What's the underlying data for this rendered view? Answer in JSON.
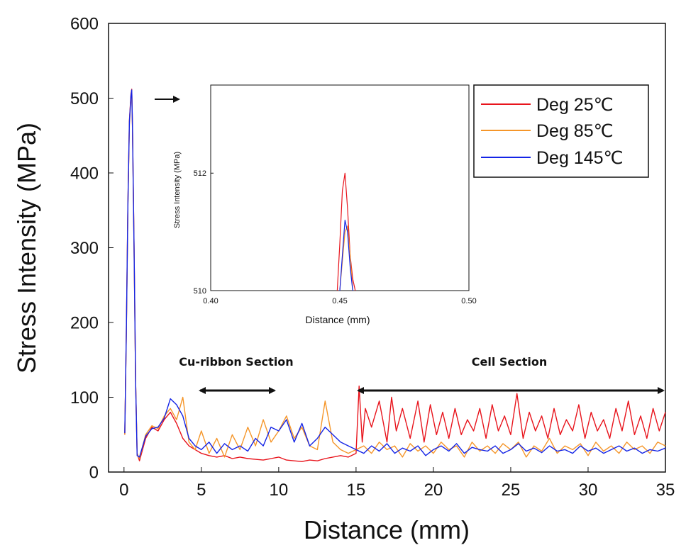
{
  "chart_data": [
    {
      "id": "main",
      "type": "line",
      "xlabel": "Distance (mm)",
      "ylabel": "Stress Intensity (MPa)",
      "xlim": [
        -1,
        35
      ],
      "ylim": [
        0,
        600
      ],
      "xticks": [
        0,
        5,
        10,
        15,
        20,
        25,
        30,
        35
      ],
      "yticks": [
        0,
        100,
        200,
        300,
        400,
        500,
        600
      ],
      "grid": false,
      "legend_position": "top-right",
      "series": [
        {
          "name": "Deg 25℃",
          "color": "#e8141c",
          "x": [
            0.05,
            0.15,
            0.25,
            0.35,
            0.45,
            0.5,
            0.55,
            0.65,
            0.75,
            0.85,
            1.0,
            1.4,
            1.8,
            2.2,
            2.6,
            3.0,
            3.4,
            3.8,
            4.2,
            4.6,
            5.0,
            5.5,
            6.0,
            6.5,
            7.0,
            7.5,
            8.0,
            8.5,
            9.0,
            9.5,
            10.0,
            10.5,
            11.0,
            11.5,
            12.0,
            12.5,
            13.0,
            13.5,
            14.0,
            14.5,
            15.0,
            15.2,
            15.4,
            15.6,
            16.0,
            16.5,
            17.0,
            17.3,
            17.6,
            18.0,
            18.5,
            19.0,
            19.4,
            19.8,
            20.2,
            20.6,
            21.0,
            21.4,
            21.8,
            22.2,
            22.6,
            23.0,
            23.4,
            23.8,
            24.2,
            24.6,
            25.0,
            25.4,
            25.8,
            26.2,
            26.6,
            27.0,
            27.4,
            27.8,
            28.2,
            28.6,
            29.0,
            29.4,
            29.8,
            30.2,
            30.6,
            31.0,
            31.4,
            31.8,
            32.2,
            32.6,
            33.0,
            33.4,
            33.8,
            34.2,
            34.6,
            35.0
          ],
          "y": [
            50,
            190,
            360,
            470,
            505,
            512,
            460,
            300,
            120,
            25,
            15,
            45,
            60,
            55,
            70,
            80,
            65,
            45,
            35,
            30,
            25,
            22,
            20,
            22,
            18,
            20,
            18,
            17,
            16,
            18,
            20,
            16,
            15,
            14,
            16,
            15,
            18,
            20,
            22,
            20,
            25,
            115,
            40,
            85,
            60,
            95,
            40,
            100,
            55,
            85,
            45,
            95,
            40,
            90,
            50,
            80,
            45,
            85,
            50,
            70,
            55,
            85,
            45,
            90,
            55,
            75,
            50,
            105,
            45,
            80,
            55,
            75,
            45,
            85,
            50,
            70,
            55,
            90,
            45,
            80,
            55,
            70,
            45,
            85,
            55,
            95,
            50,
            75,
            45,
            85,
            55,
            80
          ]
        },
        {
          "name": "Deg 85℃",
          "color": "#f5962a",
          "x": [
            0.05,
            0.15,
            0.25,
            0.35,
            0.45,
            0.5,
            0.55,
            0.65,
            0.75,
            0.85,
            1.0,
            1.4,
            1.8,
            2.2,
            2.6,
            3.0,
            3.4,
            3.8,
            4.2,
            4.6,
            5.0,
            5.5,
            6.0,
            6.5,
            7.0,
            7.5,
            8.0,
            8.5,
            9.0,
            9.5,
            10.0,
            10.5,
            11.0,
            11.5,
            12.0,
            12.5,
            13.0,
            13.5,
            14.0,
            14.5,
            15.0,
            15.5,
            16.0,
            16.5,
            17.0,
            17.5,
            18.0,
            18.5,
            19.0,
            19.5,
            20.0,
            20.5,
            21.0,
            21.5,
            22.0,
            22.5,
            23.0,
            23.5,
            24.0,
            24.5,
            25.0,
            25.5,
            26.0,
            26.5,
            27.0,
            27.5,
            28.0,
            28.5,
            29.0,
            29.5,
            30.0,
            30.5,
            31.0,
            31.5,
            32.0,
            32.5,
            33.0,
            33.5,
            34.0,
            34.5,
            35.0
          ],
          "y": [
            50,
            185,
            355,
            465,
            500,
            511,
            455,
            295,
            118,
            25,
            18,
            50,
            62,
            58,
            75,
            85,
            70,
            100,
            40,
            30,
            55,
            25,
            45,
            20,
            50,
            30,
            60,
            35,
            70,
            40,
            55,
            75,
            45,
            60,
            35,
            30,
            95,
            40,
            30,
            25,
            30,
            35,
            25,
            40,
            30,
            35,
            20,
            38,
            28,
            35,
            25,
            40,
            30,
            35,
            20,
            40,
            28,
            35,
            25,
            38,
            30,
            40,
            20,
            35,
            28,
            45,
            25,
            35,
            30,
            38,
            22,
            40,
            28,
            35,
            25,
            40,
            30,
            35,
            25,
            40,
            35
          ]
        },
        {
          "name": "Deg 145℃",
          "color": "#1424e6",
          "x": [
            0.05,
            0.15,
            0.25,
            0.35,
            0.45,
            0.5,
            0.55,
            0.65,
            0.75,
            0.85,
            1.0,
            1.4,
            1.8,
            2.2,
            2.6,
            3.0,
            3.4,
            3.8,
            4.2,
            4.6,
            5.0,
            5.5,
            6.0,
            6.5,
            7.0,
            7.5,
            8.0,
            8.5,
            9.0,
            9.5,
            10.0,
            10.5,
            11.0,
            11.5,
            12.0,
            12.5,
            13.0,
            13.5,
            14.0,
            14.5,
            15.0,
            15.5,
            16.0,
            16.5,
            17.0,
            17.5,
            18.0,
            18.5,
            19.0,
            19.5,
            20.0,
            20.5,
            21.0,
            21.5,
            22.0,
            22.5,
            23.0,
            23.5,
            24.0,
            24.5,
            25.0,
            25.5,
            26.0,
            26.5,
            27.0,
            27.5,
            28.0,
            28.5,
            29.0,
            29.5,
            30.0,
            30.5,
            31.0,
            31.5,
            32.0,
            32.5,
            33.0,
            33.5,
            34.0,
            34.5,
            35.0
          ],
          "y": [
            52,
            188,
            358,
            468,
            503,
            511,
            458,
            298,
            119,
            22,
            20,
            48,
            58,
            60,
            72,
            98,
            90,
            75,
            45,
            35,
            30,
            40,
            25,
            38,
            30,
            35,
            28,
            45,
            35,
            60,
            55,
            70,
            40,
            65,
            35,
            45,
            60,
            50,
            40,
            35,
            30,
            25,
            35,
            28,
            38,
            25,
            32,
            28,
            35,
            22,
            30,
            35,
            28,
            38,
            25,
            33,
            30,
            28,
            35,
            25,
            30,
            38,
            28,
            32,
            26,
            35,
            28,
            30,
            25,
            35,
            28,
            32,
            25,
            30,
            35,
            28,
            32,
            25,
            30,
            28,
            32
          ]
        }
      ],
      "annotations": [
        {
          "text": "Cu-ribbon Section",
          "x_start": 5,
          "x_end": 10
        },
        {
          "text": "Cell Section",
          "x_start": 15,
          "x_end": 35
        }
      ]
    },
    {
      "id": "inset",
      "type": "line",
      "xlabel": "Distance (mm)",
      "ylabel": "Stress Intensity (MPa)",
      "xlim": [
        0.4,
        0.5
      ],
      "ylim": [
        510,
        513.5
      ],
      "xticks": [
        0.4,
        0.45,
        0.5
      ],
      "xtick_labels": [
        "0.40",
        "0.45",
        "0.50"
      ],
      "yticks": [
        510,
        512
      ],
      "series": [
        {
          "name": "Deg 25℃",
          "color": "#e8141c",
          "x": [
            0.449,
            0.45,
            0.451,
            0.452,
            0.453,
            0.454,
            0.455,
            0.456
          ],
          "y": [
            510,
            510.8,
            511.7,
            512.0,
            511.4,
            510.6,
            510.2,
            510
          ]
        },
        {
          "name": "Deg 85℃",
          "color": "#f5962a",
          "x": [
            0.45,
            0.451,
            0.452,
            0.453,
            0.454,
            0.455
          ],
          "y": [
            510,
            510.5,
            511.0,
            511.1,
            510.6,
            510
          ]
        },
        {
          "name": "Deg 145℃",
          "color": "#1424e6",
          "x": [
            0.45,
            0.451,
            0.452,
            0.453,
            0.454,
            0.455
          ],
          "y": [
            510,
            510.6,
            511.2,
            511.0,
            510.4,
            510
          ]
        }
      ]
    }
  ]
}
